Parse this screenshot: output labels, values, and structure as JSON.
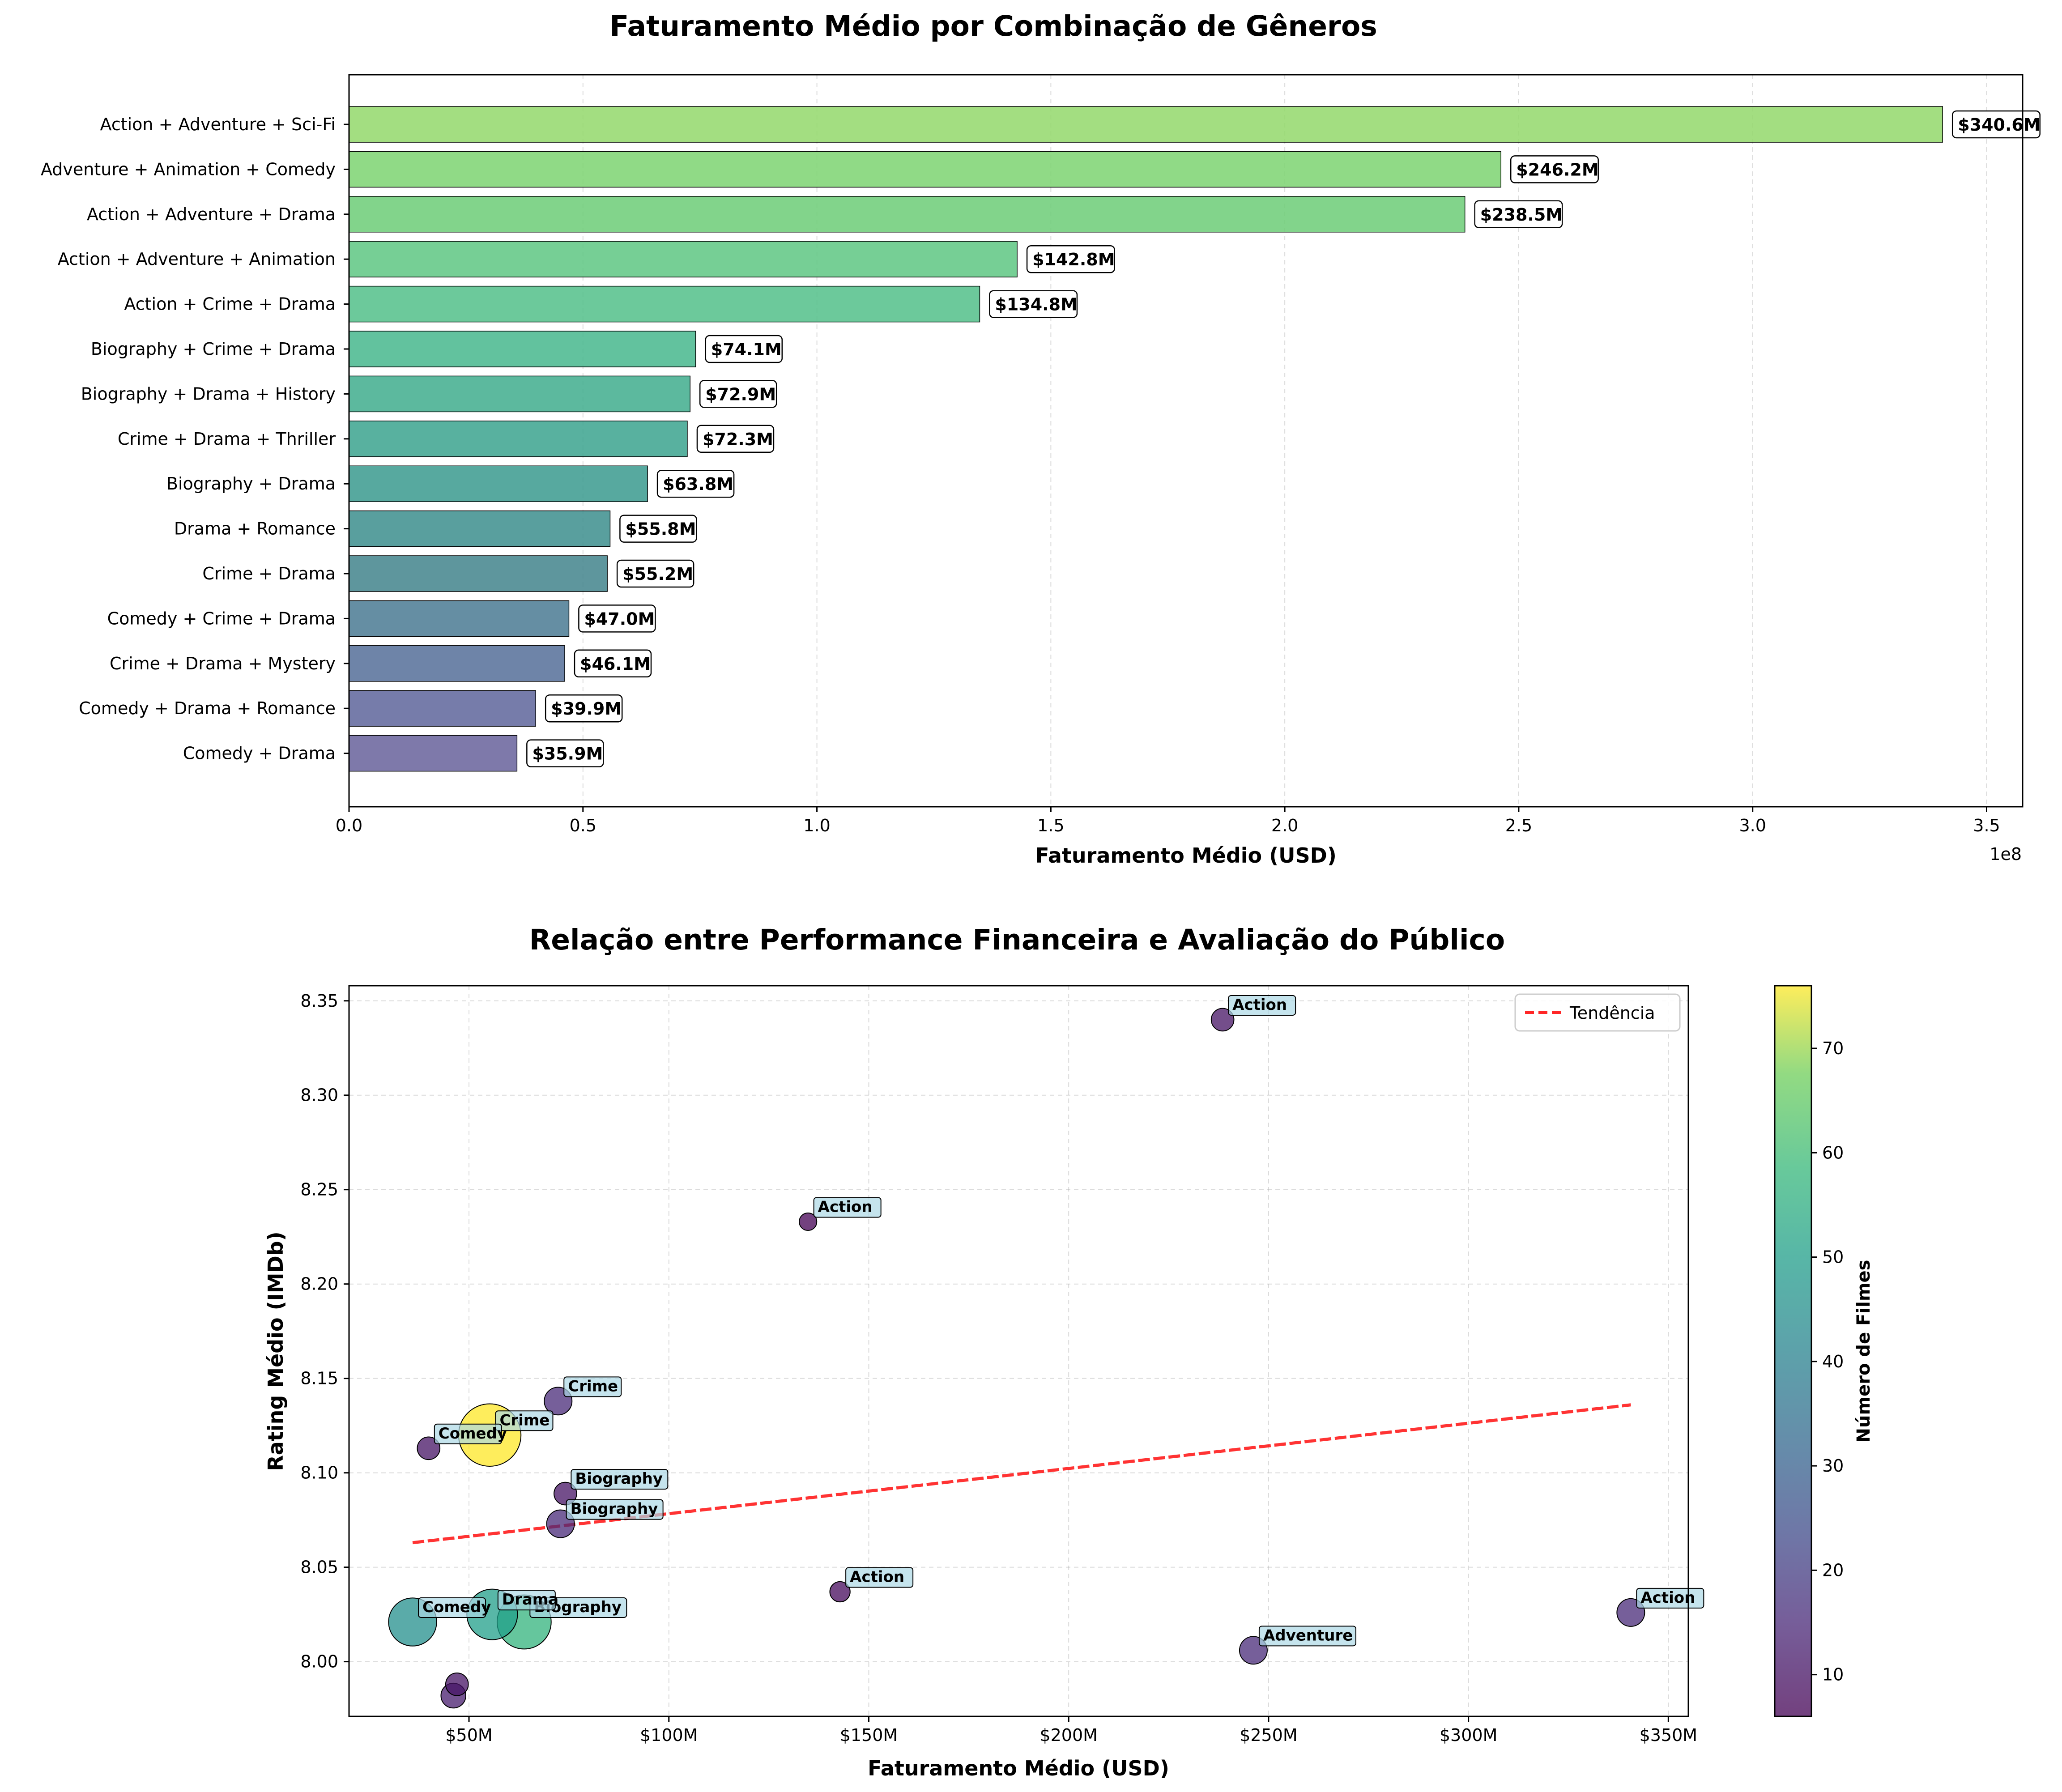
{
  "figure": {
    "top_title": "Faturamento Médio por Combinação de Gêneros",
    "bottom_title": "Relação entre Performance Financeira e Avaliação do Público"
  },
  "chart_data": [
    {
      "type": "bar",
      "orientation": "horizontal",
      "title": "Faturamento Médio por Combinação de Gêneros",
      "xlabel": "Faturamento Médio (USD)",
      "ylabel": "",
      "x_offset_label": "1e8",
      "xlim": [
        0,
        3.577
      ],
      "x_ticks": [
        0.0,
        0.5,
        1.0,
        1.5,
        2.0,
        2.5,
        3.0,
        3.5
      ],
      "x_tick_labels": [
        "0.0",
        "0.5",
        "1.0",
        "1.5",
        "2.0",
        "2.5",
        "3.0",
        "3.5"
      ],
      "grid": "x dashed",
      "categories": [
        "Action + Adventure + Sci-Fi",
        "Adventure + Animation + Comedy",
        "Action + Adventure + Drama",
        "Action + Adventure + Animation",
        "Action + Crime + Drama",
        "Biography + Crime + Drama",
        "Biography + Drama + History",
        "Crime + Drama + Thriller",
        "Biography + Drama",
        "Drama + Romance",
        "Crime + Drama",
        "Comedy + Crime + Drama",
        "Crime + Drama + Mystery",
        "Comedy + Drama + Romance",
        "Comedy + Drama"
      ],
      "values": [
        3.406,
        2.462,
        2.385,
        1.428,
        1.348,
        0.741,
        0.729,
        0.723,
        0.638,
        0.558,
        0.552,
        0.47,
        0.461,
        0.399,
        0.359
      ],
      "value_labels": [
        "$340.6M",
        "$246.2M",
        "$238.5M",
        "$142.8M",
        "$134.8M",
        "$74.1M",
        "$72.9M",
        "$72.3M",
        "$63.8M",
        "$55.8M",
        "$55.2M",
        "$47.0M",
        "$46.1M",
        "$39.9M",
        "$35.9M"
      ],
      "colors": [
        "#93d86b",
        "#7cd471",
        "#6ccc77",
        "#5ec782",
        "#52c08a",
        "#47b78d",
        "#40ad8d",
        "#3ba38e",
        "#3a9a8e",
        "#3c8e8d",
        "#42848c",
        "#4a7a93",
        "#556f99",
        "#5e659b",
        "#67619b"
      ]
    },
    {
      "type": "scatter",
      "title": "Relação entre Performance Financeira e Avaliação do Público",
      "xlabel": "Faturamento Médio (USD)",
      "ylabel": "Rating Médio (IMDb)",
      "xlim": [
        20,
        355
      ],
      "ylim": [
        7.971,
        8.358
      ],
      "x_ticks": [
        50,
        100,
        150,
        200,
        250,
        300,
        350
      ],
      "x_tick_labels": [
        "$50M",
        "$100M",
        "$150M",
        "$200M",
        "$250M",
        "$300M",
        "$350M"
      ],
      "y_ticks": [
        8.0,
        8.05,
        8.1,
        8.15,
        8.2,
        8.25,
        8.3,
        8.35
      ],
      "y_tick_labels": [
        "8.00",
        "8.05",
        "8.10",
        "8.15",
        "8.20",
        "8.25",
        "8.30",
        "8.35"
      ],
      "grid": "dashed",
      "legend": {
        "position": "top-right",
        "entries": [
          "Tendência"
        ]
      },
      "colorbar": {
        "label": "Número de Filmes",
        "min": 6,
        "max": 76,
        "ticks": [
          10,
          20,
          30,
          40,
          50,
          60,
          70
        ],
        "tick_labels": [
          "10",
          "20",
          "30",
          "40",
          "50",
          "60",
          "70"
        ]
      },
      "points": [
        {
          "x": 340.6,
          "y": 8.026,
          "count": 15,
          "label": "Action"
        },
        {
          "x": 246.2,
          "y": 8.006,
          "count": 15,
          "label": "Adventure"
        },
        {
          "x": 238.5,
          "y": 8.34,
          "count": 10,
          "label": "Action"
        },
        {
          "x": 142.8,
          "y": 8.037,
          "count": 8,
          "label": "Action"
        },
        {
          "x": 134.8,
          "y": 8.233,
          "count": 6,
          "label": "Action"
        },
        {
          "x": 74.1,
          "y": 8.089,
          "count": 10,
          "label": "Biography"
        },
        {
          "x": 72.9,
          "y": 8.073,
          "count": 15,
          "label": "Biography"
        },
        {
          "x": 72.3,
          "y": 8.138,
          "count": 15,
          "label": "Crime"
        },
        {
          "x": 63.8,
          "y": 8.021,
          "count": 57,
          "label": "Biography"
        },
        {
          "x": 55.8,
          "y": 8.025,
          "count": 50,
          "label": "Drama"
        },
        {
          "x": 55.2,
          "y": 8.12,
          "count": 76,
          "label": "Crime"
        },
        {
          "x": 47.0,
          "y": 7.988,
          "count": 10,
          "label": ""
        },
        {
          "x": 46.1,
          "y": 7.982,
          "count": 12,
          "label": ""
        },
        {
          "x": 39.9,
          "y": 8.113,
          "count": 10,
          "label": "Comedy"
        },
        {
          "x": 35.9,
          "y": 8.021,
          "count": 45,
          "label": "Comedy"
        }
      ],
      "trend": {
        "x": [
          35.9,
          340.6
        ],
        "y": [
          8.063,
          8.136
        ],
        "color": "#ff0000"
      }
    }
  ]
}
